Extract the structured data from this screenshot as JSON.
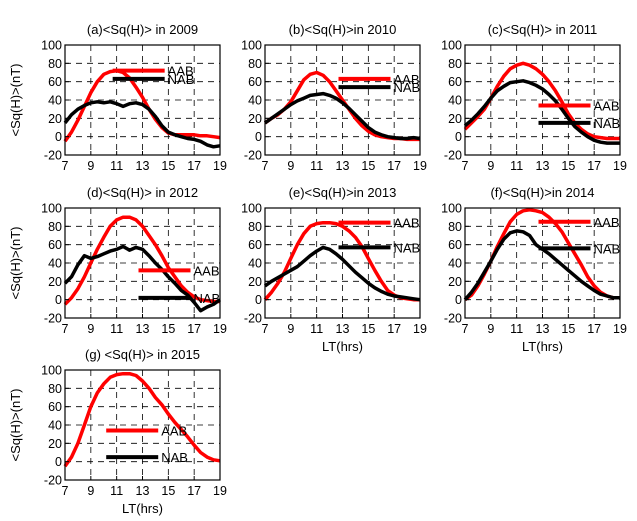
{
  "shared": {
    "type": "line",
    "xlim": [
      7,
      19
    ],
    "ylim": [
      -20,
      100
    ],
    "xticks": [
      7,
      9,
      11,
      13,
      15,
      17,
      19
    ],
    "yticks": [
      -20,
      0,
      20,
      40,
      60,
      80,
      100
    ],
    "xlabel": "LT(hrs)",
    "ylabel": "<Sq(H)>(nT)",
    "grid": "dashed",
    "colors": {
      "AAB": "#ff0000",
      "NAB": "#000000"
    }
  },
  "chart_data": [
    {
      "type": "line",
      "title": "(a)<Sq(H)> in 2009",
      "legend": [
        {
          "label": "AAB",
          "lx": 11,
          "ly": 72
        },
        {
          "label": "NAB",
          "lx": 11,
          "ly": 63
        }
      ],
      "series": [
        {
          "name": "AAB",
          "x": [
            7,
            7.5,
            8,
            8.5,
            9,
            9.5,
            10,
            10.5,
            11,
            11.5,
            12,
            12.5,
            13,
            13.5,
            14,
            14.5,
            15,
            15.5,
            16,
            16.5,
            17,
            17.5,
            18,
            18.5,
            19
          ],
          "y": [
            -5,
            5,
            18,
            33,
            48,
            60,
            68,
            71,
            72,
            70,
            64,
            54,
            43,
            30,
            19,
            10,
            4,
            2,
            2,
            2,
            2,
            1,
            1,
            0,
            -1
          ]
        },
        {
          "name": "NAB",
          "x": [
            7,
            7.5,
            8,
            8.5,
            9,
            9.5,
            10,
            10.5,
            11,
            11.5,
            12,
            12.5,
            13,
            13.5,
            14,
            14.5,
            15,
            15.5,
            16,
            16.5,
            17,
            17.5,
            18,
            18.5,
            19
          ],
          "y": [
            15,
            24,
            30,
            34,
            37,
            38,
            37,
            38,
            36,
            33,
            36,
            37,
            35,
            30,
            22,
            12,
            5,
            2,
            0,
            -2,
            -3,
            -5,
            -9,
            -11,
            -10
          ]
        }
      ]
    },
    {
      "type": "line",
      "title": "(b)<Sq(H)>in 2010",
      "legend": [
        {
          "label": "AAB",
          "lx": 13,
          "ly": 63
        },
        {
          "label": "NAB",
          "lx": 13,
          "ly": 54
        }
      ],
      "series": [
        {
          "name": "AAB",
          "x": [
            7,
            7.5,
            8,
            8.5,
            9,
            9.5,
            10,
            10.5,
            11,
            11.5,
            12,
            12.5,
            13,
            13.5,
            14,
            14.5,
            15,
            15.5,
            16,
            16.5,
            17,
            17.5,
            18,
            18.5,
            19
          ],
          "y": [
            15,
            20,
            24,
            30,
            38,
            50,
            62,
            68,
            70,
            67,
            60,
            50,
            40,
            30,
            20,
            12,
            6,
            2,
            0,
            -1,
            -2,
            -2,
            -3,
            -3,
            -3
          ]
        },
        {
          "name": "NAB",
          "x": [
            7,
            7.5,
            8,
            8.5,
            9,
            9.5,
            10,
            10.5,
            11,
            11.5,
            12,
            12.5,
            13,
            13.5,
            14,
            14.5,
            15,
            15.5,
            16,
            16.5,
            17,
            17.5,
            18,
            18.5,
            19
          ],
          "y": [
            15,
            20,
            25,
            30,
            35,
            39,
            42,
            45,
            46,
            47,
            45,
            42,
            37,
            31,
            24,
            17,
            10,
            5,
            2,
            0,
            -1,
            -2,
            -2,
            -1,
            -2
          ]
        }
      ]
    },
    {
      "type": "line",
      "title": "(c)<Sq(H)> in 2011",
      "legend": [
        {
          "label": "AAB",
          "lx": 13,
          "ly": 34
        },
        {
          "label": "NAB",
          "lx": 13,
          "ly": 15
        }
      ],
      "series": [
        {
          "name": "AAB",
          "x": [
            7,
            7.5,
            8,
            8.5,
            9,
            9.5,
            10,
            10.5,
            11,
            11.5,
            12,
            12.5,
            13,
            13.5,
            14,
            14.5,
            15,
            15.5,
            16,
            16.5,
            17,
            17.5,
            18,
            18.5,
            19
          ],
          "y": [
            8,
            15,
            22,
            30,
            42,
            55,
            66,
            74,
            78,
            80,
            78,
            74,
            68,
            60,
            50,
            38,
            25,
            15,
            8,
            3,
            0,
            -1,
            -2,
            -2,
            -2
          ]
        },
        {
          "name": "NAB",
          "x": [
            7,
            7.5,
            8,
            8.5,
            9,
            9.5,
            10,
            10.5,
            11,
            11.5,
            12,
            12.5,
            13,
            13.5,
            14,
            14.5,
            15,
            15.5,
            16,
            16.5,
            17,
            17.5,
            18,
            18.5,
            19
          ],
          "y": [
            12,
            18,
            25,
            33,
            42,
            50,
            55,
            59,
            60,
            61,
            59,
            56,
            52,
            46,
            39,
            30,
            20,
            11,
            5,
            0,
            -4,
            -6,
            -7,
            -7,
            -7
          ]
        }
      ]
    },
    {
      "type": "line",
      "title": "(d)<Sq(H)> in 2012",
      "legend": [
        {
          "label": "AAB",
          "lx": 13,
          "ly": 32
        },
        {
          "label": "NAB",
          "lx": 13,
          "ly": 2
        }
      ],
      "series": [
        {
          "name": "AAB",
          "x": [
            7,
            7.5,
            8,
            8.5,
            9,
            9.5,
            10,
            10.5,
            11,
            11.5,
            12,
            12.5,
            13,
            13.5,
            14,
            14.5,
            15,
            15.5,
            16,
            16.5,
            17,
            17.5,
            18,
            18.5,
            19
          ],
          "y": [
            -5,
            2,
            12,
            25,
            40,
            55,
            68,
            80,
            87,
            90,
            90,
            87,
            80,
            70,
            60,
            48,
            35,
            25,
            15,
            8,
            3,
            0,
            -1,
            -2,
            -2
          ]
        },
        {
          "name": "NAB",
          "x": [
            7,
            7.5,
            8,
            8.5,
            9,
            9.5,
            10,
            10.5,
            11,
            11.5,
            12,
            12.5,
            13,
            13.5,
            14,
            14.5,
            15,
            15.5,
            16,
            16.5,
            17,
            17.5,
            18,
            18.5,
            19
          ],
          "y": [
            18,
            25,
            38,
            48,
            45,
            47,
            50,
            53,
            55,
            58,
            54,
            57,
            55,
            48,
            40,
            33,
            25,
            18,
            10,
            5,
            -3,
            -12,
            -8,
            -5,
            0
          ]
        }
      ]
    },
    {
      "type": "line",
      "title": "(e)<Sq(H)>in 2013",
      "legend": [
        {
          "label": "AAB",
          "lx": 13,
          "ly": 84
        },
        {
          "label": "NAB",
          "lx": 13,
          "ly": 57
        }
      ],
      "series": [
        {
          "name": "AAB",
          "x": [
            7,
            7.5,
            8,
            8.5,
            9,
            9.5,
            10,
            10.5,
            11,
            11.5,
            12,
            12.5,
            13,
            13.5,
            14,
            14.5,
            15,
            15.5,
            16,
            16.5,
            17,
            17.5,
            18,
            18.5,
            19
          ],
          "y": [
            0,
            8,
            18,
            30,
            45,
            60,
            72,
            80,
            83,
            84,
            84,
            83,
            80,
            75,
            68,
            58,
            45,
            32,
            20,
            10,
            5,
            2,
            1,
            0,
            0
          ]
        },
        {
          "name": "NAB",
          "x": [
            7,
            7.5,
            8,
            8.5,
            9,
            9.5,
            10,
            10.5,
            11,
            11.5,
            12,
            12.5,
            13,
            13.5,
            14,
            14.5,
            15,
            15.5,
            16,
            16.5,
            17,
            17.5,
            18,
            18.5,
            19
          ],
          "y": [
            15,
            20,
            24,
            28,
            32,
            36,
            42,
            48,
            53,
            57,
            55,
            50,
            44,
            37,
            30,
            24,
            18,
            13,
            9,
            6,
            4,
            3,
            2,
            1,
            0
          ]
        }
      ]
    },
    {
      "type": "line",
      "title": "(f)<Sq(H)>in 2014",
      "legend": [
        {
          "label": "AAB",
          "lx": 13,
          "ly": 85
        },
        {
          "label": "NAB",
          "lx": 13,
          "ly": 56
        }
      ],
      "series": [
        {
          "name": "AAB",
          "x": [
            7,
            7.5,
            8,
            8.5,
            9,
            9.5,
            10,
            10.5,
            11,
            11.5,
            12,
            12.5,
            13,
            13.5,
            14,
            14.5,
            15,
            15.5,
            16,
            16.5,
            17,
            17.5,
            18,
            18.5,
            19
          ],
          "y": [
            0,
            5,
            15,
            28,
            42,
            58,
            72,
            85,
            93,
            97,
            98,
            97,
            95,
            90,
            83,
            74,
            62,
            50,
            38,
            25,
            15,
            8,
            4,
            2,
            2
          ]
        },
        {
          "name": "NAB",
          "x": [
            7,
            7.5,
            8,
            8.5,
            9,
            9.5,
            10,
            10.5,
            11,
            11.5,
            12,
            12.5,
            13,
            13.5,
            14,
            14.5,
            15,
            15.5,
            16,
            16.5,
            17,
            17.5,
            18,
            18.5,
            19
          ],
          "y": [
            0,
            8,
            18,
            30,
            42,
            55,
            66,
            73,
            75,
            74,
            70,
            60,
            55,
            50,
            44,
            38,
            32,
            26,
            20,
            15,
            10,
            6,
            4,
            2,
            2
          ]
        }
      ]
    },
    {
      "type": "line",
      "title": "(g) <Sq(H)> in 2015",
      "legend": [
        {
          "label": "AAB",
          "lx": 10.5,
          "ly": 34
        },
        {
          "label": "NAB",
          "lx": 10.5,
          "ly": 5
        }
      ],
      "series": [
        {
          "name": "AAB",
          "x": [
            7,
            7.5,
            8,
            8.5,
            9,
            9.5,
            10,
            10.5,
            11,
            11.5,
            12,
            12.5,
            13,
            13.5,
            14,
            14.5,
            15,
            15.5,
            16,
            16.5,
            17,
            17.5,
            18,
            18.5,
            19
          ],
          "y": [
            -5,
            5,
            20,
            40,
            60,
            75,
            85,
            92,
            95,
            96,
            96,
            94,
            88,
            80,
            70,
            62,
            52,
            43,
            35,
            27,
            18,
            10,
            5,
            2,
            1
          ]
        }
      ]
    }
  ]
}
